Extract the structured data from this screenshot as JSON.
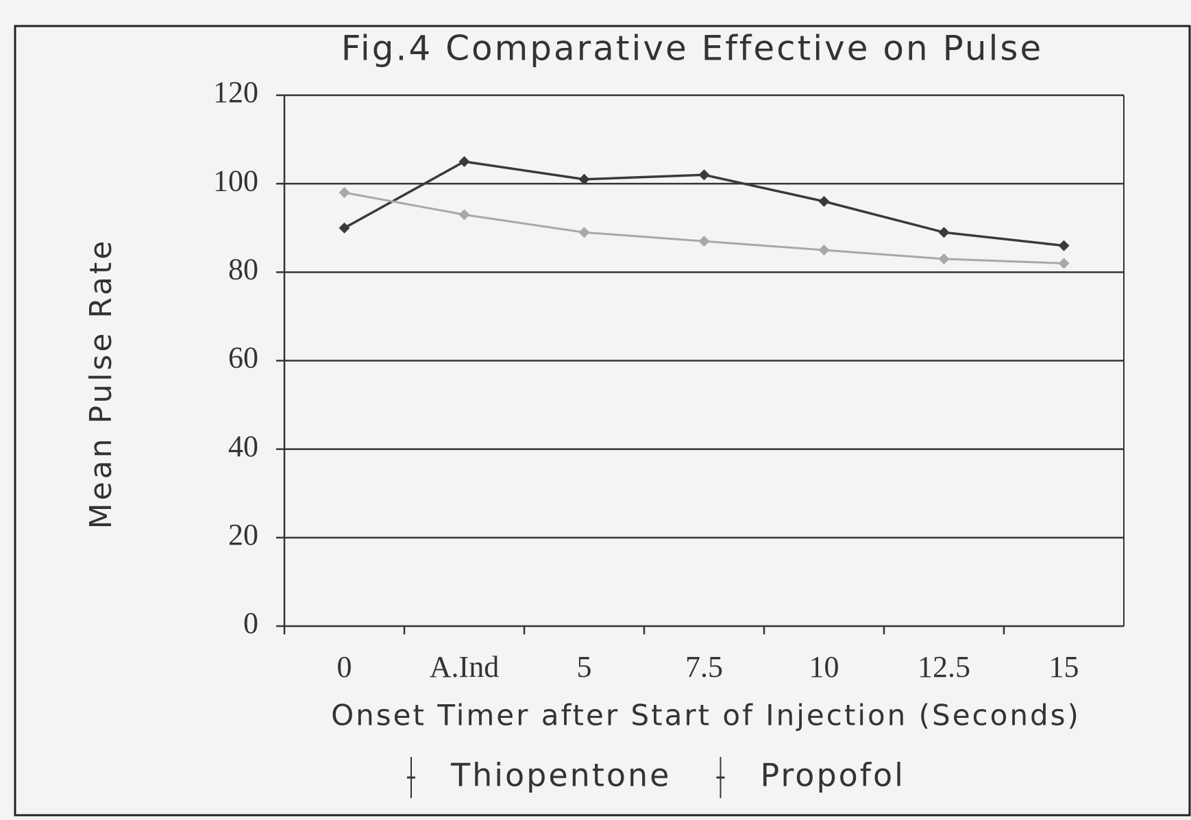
{
  "chart_data": {
    "type": "line",
    "title": "Fig.4 Comparative Effective on Pulse",
    "xlabel": "Onset Timer after Start of Injection (Seconds)",
    "ylabel": "Mean Pulse Rate",
    "categories": [
      "0",
      "A.Ind",
      "5",
      "7.5",
      "10",
      "12.5",
      "15"
    ],
    "series": [
      {
        "name": "Thiopentone",
        "color": "#3a3a3a",
        "values": [
          90,
          105,
          101,
          102,
          96,
          89,
          86
        ]
      },
      {
        "name": "Propofol",
        "color": "#a8a8a8",
        "values": [
          98,
          93,
          89,
          87,
          85,
          83,
          82
        ]
      }
    ],
    "ylim": [
      0,
      120
    ],
    "yticks": [
      0,
      20,
      40,
      60,
      80,
      100,
      120
    ],
    "grid": true,
    "legend": "bottom"
  }
}
